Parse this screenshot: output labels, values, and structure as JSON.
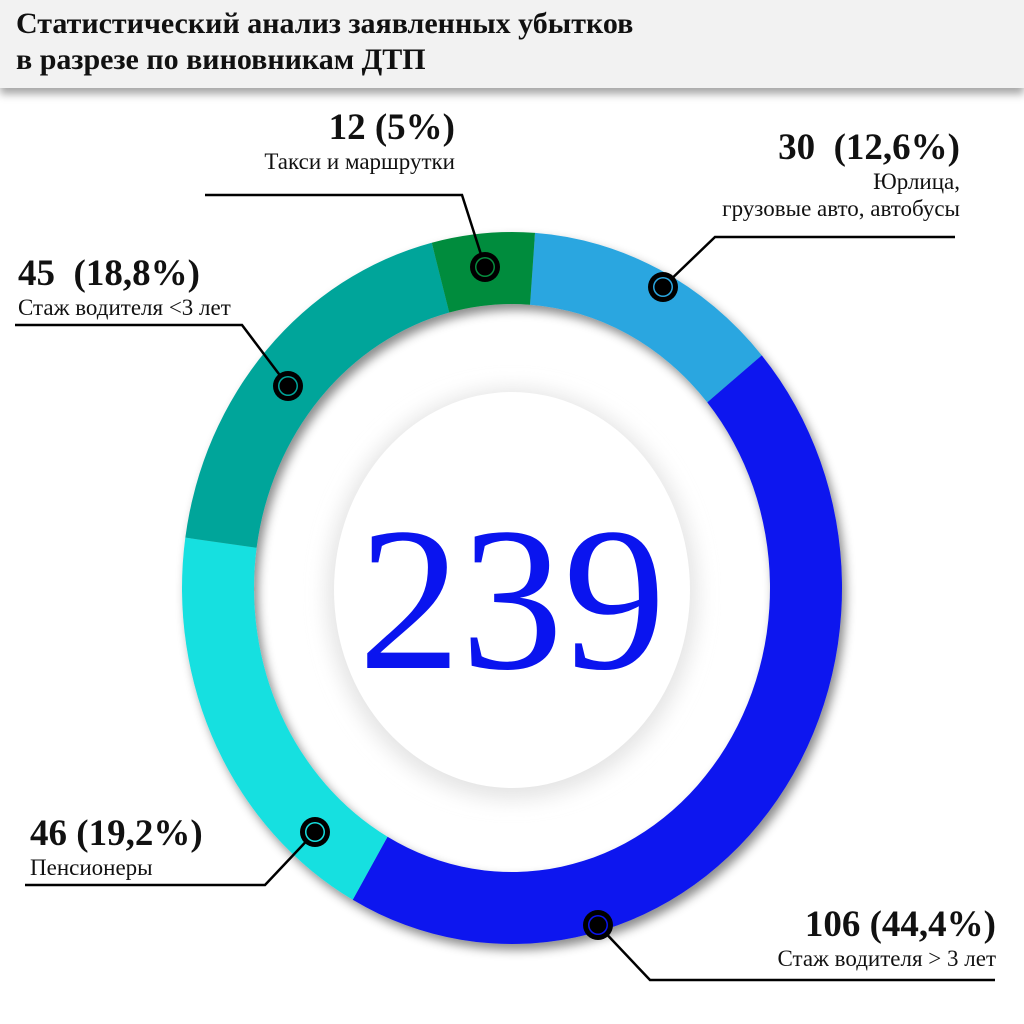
{
  "title": {
    "line1": "Статистический анализ заявленных убытков",
    "line2": "в разрезе по виновникам ДТП"
  },
  "chart_data": {
    "type": "pie",
    "variant": "donut",
    "total": "239",
    "categories": [
      "Юрлица, грузовые авто, автобусы",
      "Стаж водителя > 3 лет",
      "Пенсионеры",
      "Стаж водителя <3 лет",
      "Такси и маршрутки"
    ],
    "values": [
      30,
      106,
      46,
      45,
      12
    ],
    "percents": [
      12.6,
      44.4,
      19.2,
      18.8,
      5
    ],
    "colors": [
      "#2aa6e0",
      "#0a14ef",
      "#16e0e0",
      "#00a59a",
      "#068c3e"
    ],
    "center_color": "#0a14ef",
    "labels": [
      {
        "value": "30  (12,6%)",
        "name1": "Юрлица,",
        "name2": "грузовые авто, автобусы"
      },
      {
        "value": "106 (44,4%)",
        "name1": "Стаж водителя > 3 лет"
      },
      {
        "value": "46 (19,2%)",
        "name1": "Пенсионеры"
      },
      {
        "value": "45  (18,8%)",
        "name1": "Стаж водителя <3 лет"
      },
      {
        "value": "12 (5%)",
        "name1": "Такси и маршрутки"
      }
    ]
  }
}
